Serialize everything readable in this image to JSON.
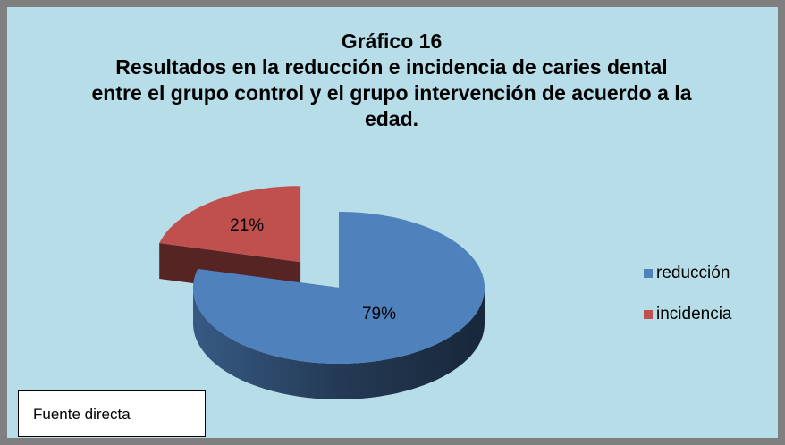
{
  "chart_data": {
    "type": "pie",
    "title": "Gráfico 16",
    "subtitle": "Resultados en la reducción e incidencia de caries dental entre el grupo control y el grupo intervención de acuerdo a la edad.",
    "categories": [
      "reducción",
      "incidencia"
    ],
    "values": [
      79,
      21
    ],
    "value_labels": [
      "79%",
      "21%"
    ],
    "colors": [
      "#4f81bd",
      "#c0504d"
    ],
    "legend": "right",
    "annotation": "Fuente directa"
  }
}
